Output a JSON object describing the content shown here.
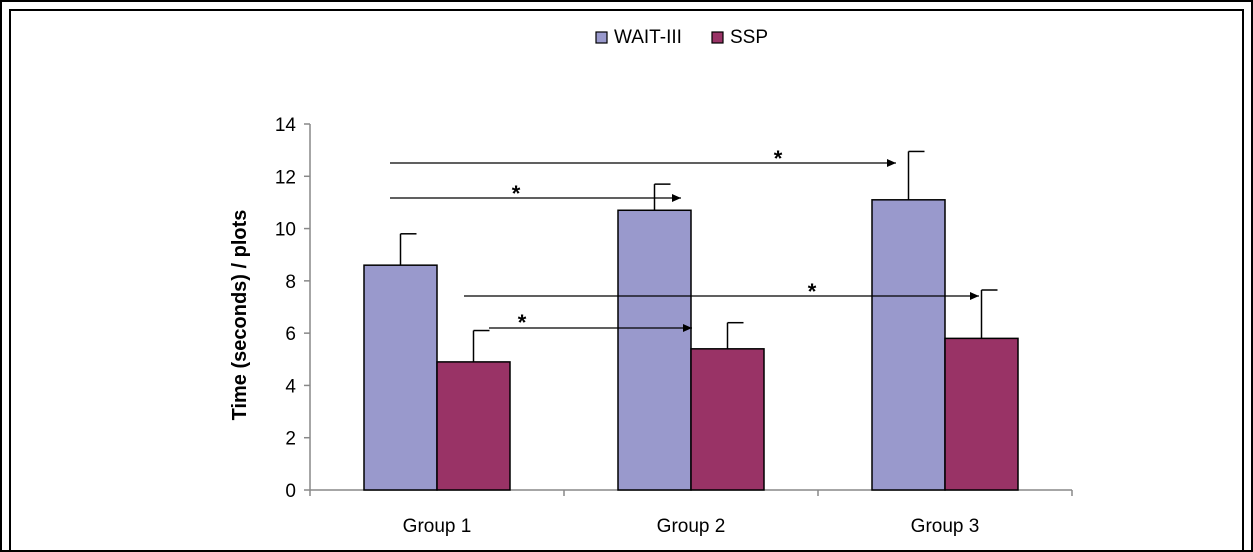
{
  "chart_data": {
    "type": "bar",
    "title": "",
    "xlabel": "",
    "ylabel": "Time (seconds) / plots",
    "ylim": [
      0,
      14
    ],
    "yticks": [
      0,
      2,
      4,
      6,
      8,
      10,
      12,
      14
    ],
    "categories": [
      "Group 1",
      "Group 2",
      "Group 3"
    ],
    "series": [
      {
        "name": "WAIT-III",
        "color": "#9999cc",
        "values": [
          8.6,
          10.7,
          11.1
        ],
        "errors": [
          1.2,
          1.0,
          1.85
        ]
      },
      {
        "name": "SSP",
        "color": "#993366",
        "values": [
          4.9,
          5.4,
          5.8
        ],
        "errors": [
          1.2,
          1.0,
          1.85
        ]
      }
    ],
    "legend": "top-center",
    "grid": false,
    "annotations": [
      {
        "label": "*",
        "from": "Group 1 WAIT-III",
        "to": "Group 3 WAIT-III"
      },
      {
        "label": "*",
        "from": "Group 1 WAIT-III",
        "to": "Group 2 WAIT-III"
      },
      {
        "label": "*",
        "from": "Group 1 SSP",
        "to": "Group 3 SSP"
      },
      {
        "label": "*",
        "from": "Group 1 SSP",
        "to": "Group 2 SSP"
      }
    ]
  }
}
